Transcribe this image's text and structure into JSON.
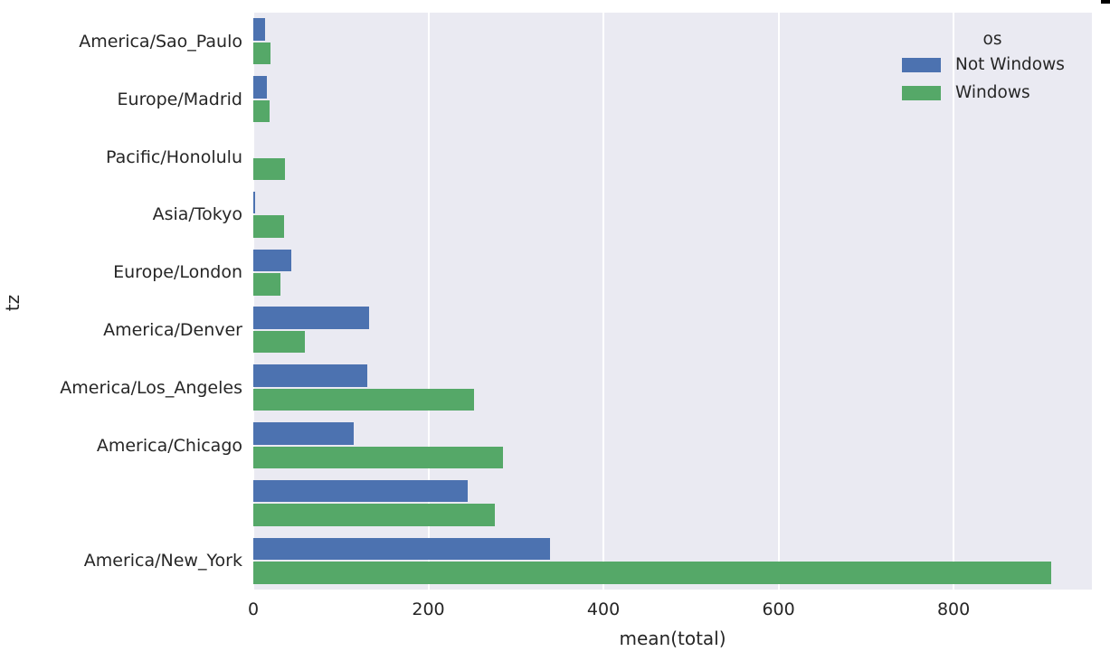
{
  "chart_data": {
    "type": "bar",
    "orientation": "horizontal",
    "title": "",
    "xlabel": "mean(total)",
    "ylabel": "tz",
    "categories": [
      "America/Sao_Paulo",
      "Europe/Madrid",
      "Pacific/Honolulu",
      "Asia/Tokyo",
      "Europe/London",
      "America/Denver",
      "America/Los_Angeles",
      "America/Chicago",
      "",
      "America/New_York"
    ],
    "series": [
      {
        "name": "Not Windows",
        "color": "#4c72b0",
        "values": [
          13,
          16,
          0,
          2,
          43,
          132,
          130,
          115,
          245,
          339
        ]
      },
      {
        "name": "Windows",
        "color": "#55a868",
        "values": [
          20,
          19,
          36,
          35,
          31,
          59,
          252,
          285,
          276,
          912
        ]
      }
    ],
    "xticks": [
      0,
      200,
      400,
      600,
      800
    ],
    "xlim": [
      0,
      958
    ],
    "grid": true,
    "plot_background": "#eaeaf2",
    "gridline_color": "#ffffff",
    "text_color": "#262626",
    "legend": {
      "title": "os",
      "position": "upper right"
    }
  }
}
